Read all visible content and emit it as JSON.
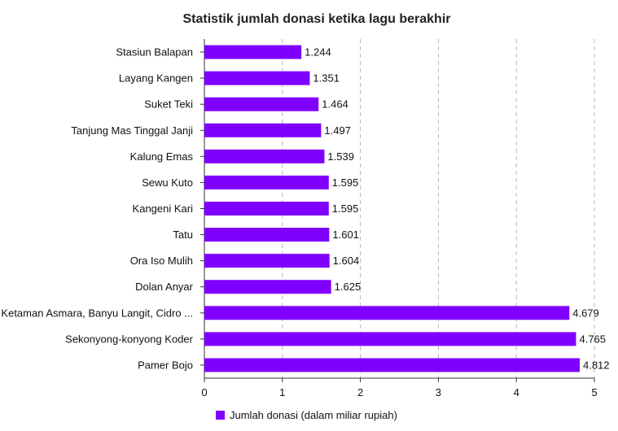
{
  "chart_data": {
    "type": "bar",
    "orientation": "horizontal",
    "title": "Statistik jumlah donasi ketika lagu berakhir",
    "categories": [
      "Stasiun Balapan",
      "Layang Kangen",
      "Suket Teki",
      "Tanjung Mas Tinggal Janji",
      "Kalung Emas",
      "Sewu Kuto",
      "Kangeni Kari",
      "Tatu",
      "Ora Iso Mulih",
      "Dolan Anyar",
      "Ketaman Asmara, Banyu Langit, Cidro ...",
      "Sekonyong-konyong Koder",
      "Pamer Bojo"
    ],
    "series": [
      {
        "name": "Jumlah donasi (dalam miliar rupiah)",
        "values": [
          1.244,
          1.351,
          1.464,
          1.497,
          1.539,
          1.595,
          1.595,
          1.601,
          1.604,
          1.625,
          4.679,
          4.765,
          4.812
        ],
        "value_labels": [
          "1.244",
          "1.351",
          "1.464",
          "1.497",
          "1.539",
          "1.595",
          "1.595",
          "1.601",
          "1.604",
          "1.625",
          "4.679",
          "4.765",
          "4.812"
        ],
        "color": "#7f00ff"
      }
    ],
    "xlim": [
      0,
      5
    ],
    "xticks": [
      "0",
      "1",
      "2",
      "3",
      "4",
      "5"
    ],
    "grid": true,
    "legend_position": "bottom"
  }
}
